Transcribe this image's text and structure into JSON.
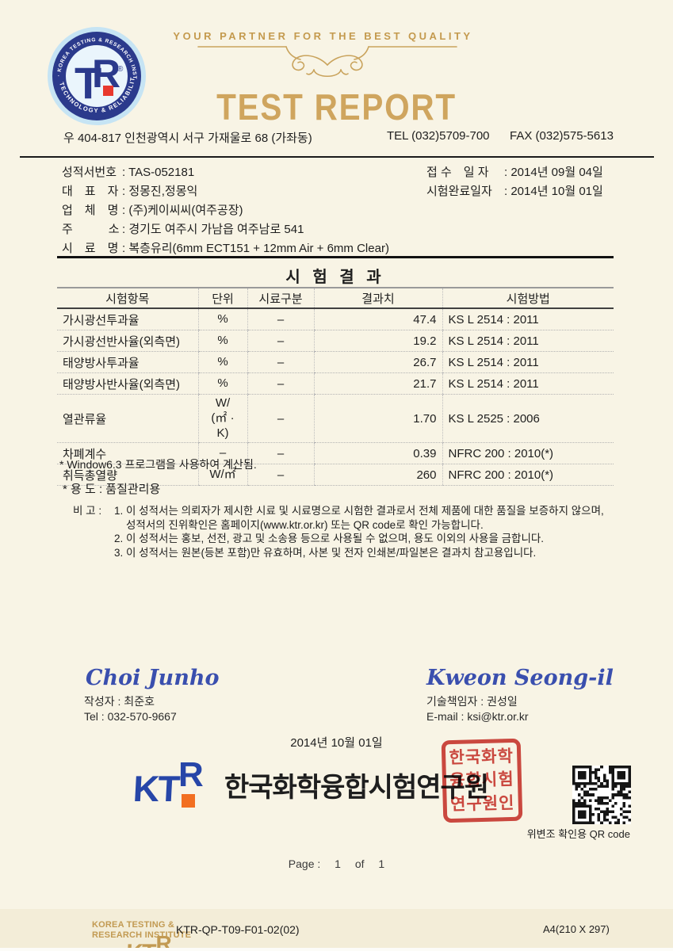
{
  "colors": {
    "gold": "#c9a35c",
    "badge_navy": "#2b3a8c",
    "ktr_blue": "#2746a8",
    "ktr_orange": "#f26f21",
    "seal_red": "#cc3b36",
    "signature_blue": "#3a4fae",
    "paper_cream": "#f8f4e5"
  },
  "header": {
    "slogan": "YOUR PARTNER FOR THE BEST QUALITY",
    "title": "TEST REPORT",
    "address": "우 404-817 인천광역시 서구 가재울로 68 (가좌동)",
    "tel": "TEL (032)5709-700",
    "fax": "FAX (032)575-5613",
    "badge": {
      "top_text": "· KOREA TESTING & RESEARCH INSTITUTE ·",
      "bottom_text": "TECHNOLOGY & RELIABILITY",
      "monogram_t": "T",
      "monogram_r": "R",
      "reg": "®"
    }
  },
  "meta": {
    "left": [
      {
        "label": "성적서번호",
        "value": ": TAS-052181"
      },
      {
        "label": "대　표　자",
        "value": ": 정몽진,정몽익"
      },
      {
        "label": "업　체　명",
        "value": ": (주)케이씨씨(여주공장)"
      },
      {
        "label": "주　　　소",
        "value": ": 경기도 여주시 가남읍 여주남로 541"
      }
    ],
    "right": [
      {
        "label": "접 수　일 자",
        "value": ": 2014년 09월 04일"
      },
      {
        "label": "시험완료일자",
        "value": ": 2014년 10월 01일"
      }
    ],
    "sample": {
      "label": "시　료　명",
      "value": ": 복층유리(6mm ECT151 + 12mm Air + 6mm Clear)"
    }
  },
  "results": {
    "title": "시 험 결 과",
    "headers": [
      "시험항목",
      "단위",
      "시료구분",
      "결과치",
      "시험방법"
    ],
    "rows": [
      [
        "가시광선투과율",
        "%",
        "–",
        "47.4",
        "KS L 2514 : 2011"
      ],
      [
        "가시광선반사율(외측면)",
        "%",
        "–",
        "19.2",
        "KS L 2514 : 2011"
      ],
      [
        "태양방사투과율",
        "%",
        "–",
        "26.7",
        "KS L 2514 : 2011"
      ],
      [
        "태양방사반사율(외측면)",
        "%",
        "–",
        "21.7",
        "KS L 2514 : 2011"
      ],
      [
        "열관류율",
        "W/\n(㎡ · K)",
        "–",
        "1.70",
        "KS L 2525 : 2006"
      ],
      [
        "차폐계수",
        "–",
        "–",
        "0.39",
        "NFRC 200 : 2010(*)"
      ],
      [
        "취득총열량",
        "W/㎡",
        "–",
        "260",
        "NFRC 200 : 2010(*)"
      ]
    ],
    "footnote": "* Window6.3 프로그램을 사용하여 계산됨."
  },
  "usage": "* 용 도 : 품질관리용",
  "remarks": {
    "label": "비 고 :",
    "lines": [
      "1. 이 성적서는 의뢰자가 제시한 시료 및 시료명으로 시험한 결과로서 전체 제품에 대한 품질을 보증하지 않으며,",
      "성적서의 진위확인은 홈페이지(www.ktr.or.kr) 또는 QR code로 확인 가능합니다.",
      "2. 이 성적서는 홍보, 선전, 광고 및 소송용 등으로 사용될 수 없으며, 용도 이외의 사용을 금합니다.",
      "3. 이 성적서는 원본(등본 포함)만 유효하며, 사본 및 전자 인쇄본/파일본은 결과치 참고용입니다."
    ]
  },
  "signatures": {
    "left": {
      "script": "Choi Junho",
      "name": "작성자 : 최준호",
      "contact": "Tel : 032-570-9667"
    },
    "right": {
      "script": "Kweon Seong-il",
      "name": "기술책임자 : 권성일",
      "contact": "E-mail : ksi@ktr.or.kr"
    }
  },
  "issue": {
    "date": "2014년 10월 01일",
    "logo_kt": "KT",
    "logo_r": "R",
    "org_name": "한국화학융합시험연구원",
    "seal_rows": [
      "한국화학",
      "융합시험",
      "연구원인"
    ],
    "qr_caption": "위변조 확인용 QR code"
  },
  "pagination": {
    "prefix": "Page :",
    "current": "1",
    "mid": "of",
    "total": "1"
  },
  "footer": {
    "org_line1": "KOREA TESTING &",
    "org_line2": "RESEARCH INSTITUTE",
    "doc_code": "KTR-QP-T09-F01-02(02)",
    "paper": "A4(210 X 297)"
  }
}
